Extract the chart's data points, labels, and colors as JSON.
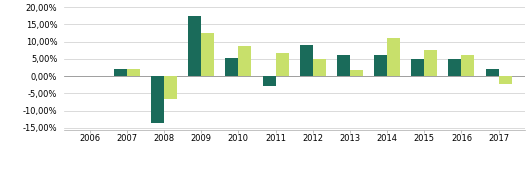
{
  "years": [
    "2006",
    "2007",
    "2008",
    "2009",
    "2010",
    "2011",
    "2012",
    "2013",
    "2014",
    "2015",
    "2016",
    "2017"
  ],
  "fondo": [
    0.0,
    0.02,
    -0.135,
    0.175,
    0.053,
    -0.028,
    0.09,
    0.06,
    0.062,
    0.05,
    0.05,
    0.02
  ],
  "benchmark": [
    0.0,
    0.02,
    -0.065,
    0.125,
    0.087,
    0.068,
    0.05,
    0.018,
    0.11,
    0.077,
    0.06,
    -0.022
  ],
  "fondo_color": "#1a6b5a",
  "benchmark_color": "#c8e06b",
  "ylim": [
    -0.155,
    0.205
  ],
  "yticks": [
    -0.15,
    -0.1,
    -0.05,
    0.0,
    0.05,
    0.1,
    0.15,
    0.2
  ],
  "background_color": "#ffffff",
  "grid_color": "#cccccc",
  "bar_width": 0.35
}
